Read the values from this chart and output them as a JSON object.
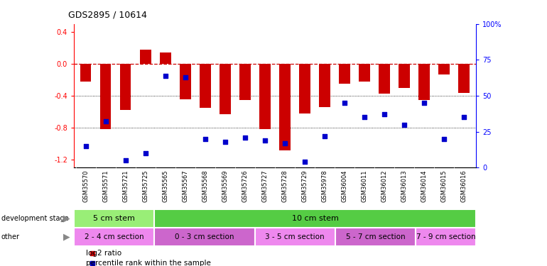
{
  "title": "GDS2895 / 10614",
  "samples": [
    "GSM35570",
    "GSM35571",
    "GSM35721",
    "GSM35725",
    "GSM35565",
    "GSM35567",
    "GSM35568",
    "GSM35569",
    "GSM35726",
    "GSM35727",
    "GSM35728",
    "GSM35729",
    "GSM35978",
    "GSM36004",
    "GSM36011",
    "GSM36012",
    "GSM36013",
    "GSM36014",
    "GSM36015",
    "GSM36016"
  ],
  "log2_ratio": [
    -0.22,
    -0.82,
    -0.58,
    0.18,
    0.14,
    -0.44,
    -0.55,
    -0.63,
    -0.45,
    -0.82,
    -1.08,
    -0.62,
    -0.54,
    -0.25,
    -0.22,
    -0.37,
    -0.3,
    -0.45,
    -0.13,
    -0.36
  ],
  "percentile": [
    15,
    32,
    5,
    10,
    64,
    63,
    20,
    18,
    21,
    19,
    17,
    4,
    22,
    45,
    35,
    37,
    30,
    45,
    20,
    35
  ],
  "bar_color": "#cc0000",
  "dot_color": "#0000cc",
  "dashed_line_color": "#cc0000",
  "ylim_left": [
    -1.3,
    0.5
  ],
  "ylim_right": [
    0,
    100
  ],
  "yticks_left": [
    -1.2,
    -0.8,
    -0.4,
    0.0,
    0.4
  ],
  "yticks_right": [
    0,
    25,
    50,
    75,
    100
  ],
  "dev_stage_groups": [
    {
      "label": "5 cm stem",
      "start": 0,
      "end": 3,
      "color": "#99ee77"
    },
    {
      "label": "10 cm stem",
      "start": 4,
      "end": 19,
      "color": "#55cc44"
    }
  ],
  "other_groups": [
    {
      "label": "2 - 4 cm section",
      "start": 0,
      "end": 3,
      "color": "#ee88ee"
    },
    {
      "label": "0 - 3 cm section",
      "start": 4,
      "end": 8,
      "color": "#cc66cc"
    },
    {
      "label": "3 - 5 cm section",
      "start": 9,
      "end": 12,
      "color": "#ee88ee"
    },
    {
      "label": "5 - 7 cm section",
      "start": 13,
      "end": 16,
      "color": "#cc66cc"
    },
    {
      "label": "7 - 9 cm section",
      "start": 17,
      "end": 19,
      "color": "#ee88ee"
    }
  ],
  "bg_color": "#ffffff"
}
